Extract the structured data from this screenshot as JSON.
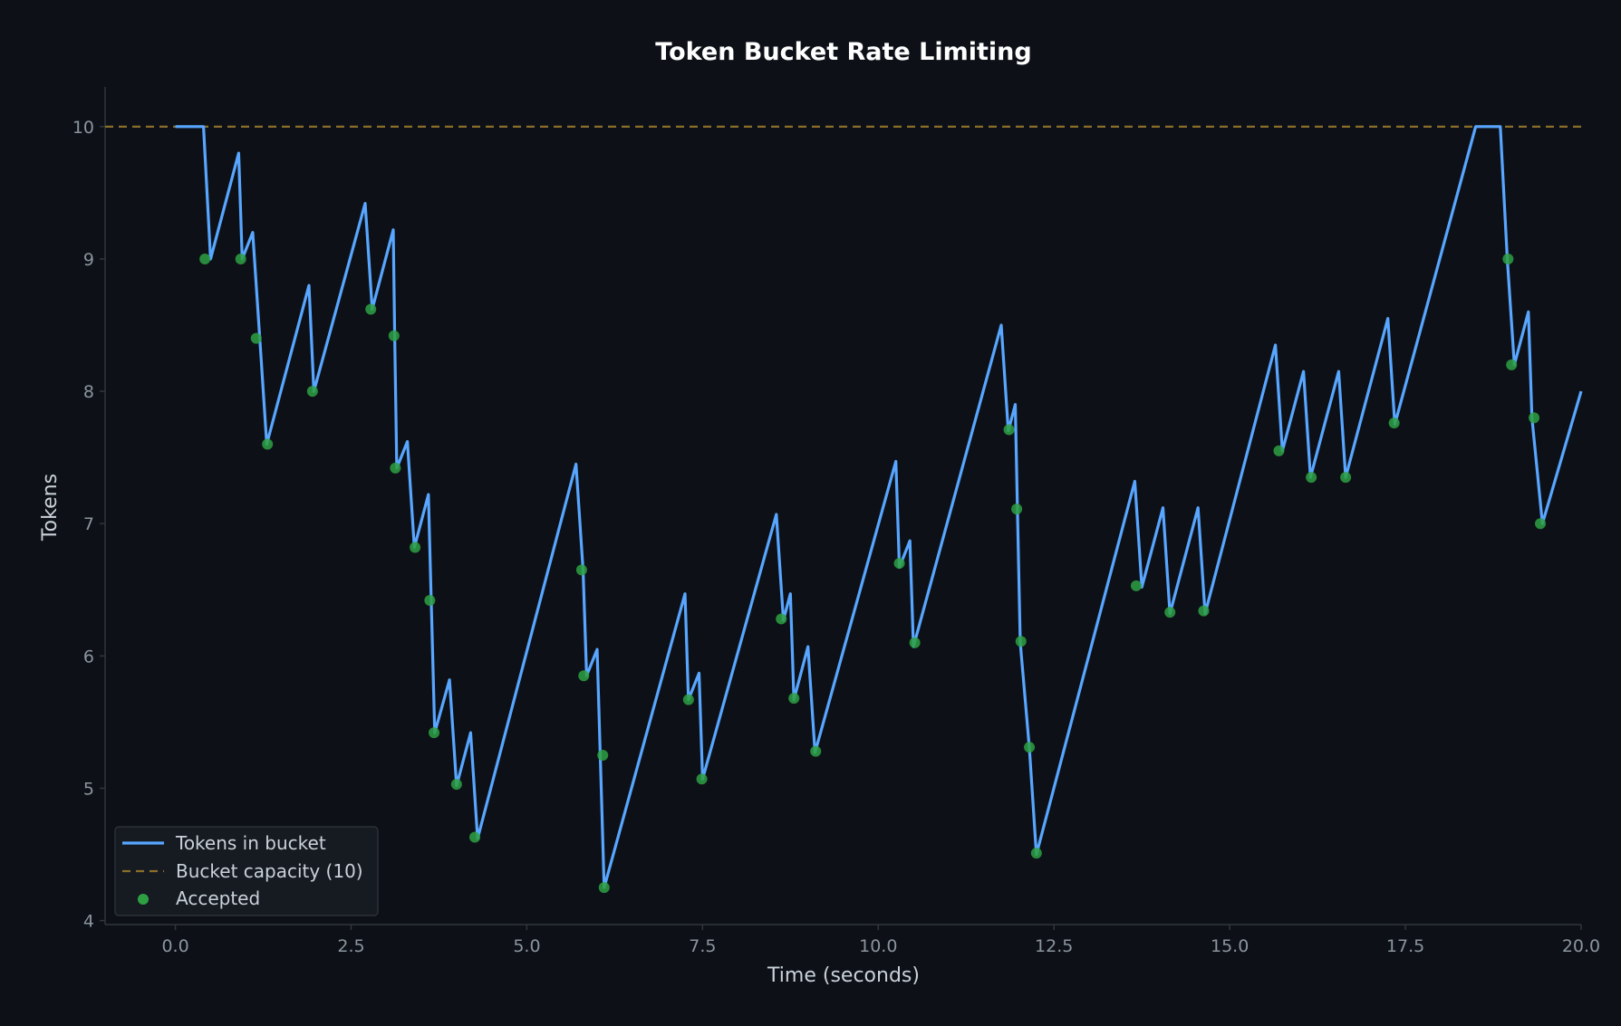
{
  "chart_data": {
    "type": "line",
    "title": "Token Bucket Rate Limiting",
    "xlabel": "Time (seconds)",
    "ylabel": "Tokens",
    "xlim": [
      -1.0,
      20.0
    ],
    "ylim": [
      3.97,
      10.3
    ],
    "x_ticks": [
      "0.0",
      "2.5",
      "5.0",
      "7.5",
      "10.0",
      "12.5",
      "15.0",
      "17.5",
      "20.0"
    ],
    "y_ticks": [
      "4",
      "5",
      "6",
      "7",
      "8",
      "9",
      "10"
    ],
    "grid": false,
    "legend_position": "lower-left",
    "capacity": 10,
    "colors": {
      "background": "#0d1117",
      "line": "#58a6ff",
      "capacity": "#8b6d2a",
      "accepted": "#2ea043",
      "axis": "#30363d"
    },
    "series": [
      {
        "name": "Tokens in bucket",
        "style": "solid",
        "points": [
          [
            0.0,
            10.0
          ],
          [
            0.4,
            10.0
          ],
          [
            0.5,
            9.0
          ],
          [
            0.9,
            9.8
          ],
          [
            0.95,
            9.0
          ],
          [
            1.1,
            9.2
          ],
          [
            1.2,
            8.4
          ],
          [
            1.3,
            7.6
          ],
          [
            1.9,
            8.8
          ],
          [
            1.97,
            8.0
          ],
          [
            2.7,
            9.42
          ],
          [
            2.8,
            8.62
          ],
          [
            3.1,
            9.22
          ],
          [
            3.12,
            8.42
          ],
          [
            3.15,
            7.42
          ],
          [
            3.3,
            7.62
          ],
          [
            3.4,
            6.82
          ],
          [
            3.6,
            7.22
          ],
          [
            3.64,
            6.42
          ],
          [
            3.69,
            5.42
          ],
          [
            3.9,
            5.82
          ],
          [
            4.0,
            5.02
          ],
          [
            4.2,
            5.42
          ],
          [
            4.3,
            4.62
          ],
          [
            5.7,
            7.45
          ],
          [
            5.8,
            6.65
          ],
          [
            5.85,
            5.85
          ],
          [
            6.0,
            6.05
          ],
          [
            6.1,
            4.25
          ],
          [
            7.25,
            6.47
          ],
          [
            7.3,
            5.67
          ],
          [
            7.45,
            5.87
          ],
          [
            7.5,
            5.07
          ],
          [
            8.55,
            7.07
          ],
          [
            8.65,
            6.27
          ],
          [
            8.75,
            6.47
          ],
          [
            8.8,
            5.67
          ],
          [
            9.0,
            6.07
          ],
          [
            9.1,
            5.27
          ],
          [
            10.25,
            7.47
          ],
          [
            10.3,
            6.67
          ],
          [
            10.45,
            6.87
          ],
          [
            10.5,
            6.07
          ],
          [
            11.75,
            8.5
          ],
          [
            11.85,
            7.7
          ],
          [
            11.95,
            7.9
          ],
          [
            11.98,
            7.1
          ],
          [
            12.02,
            6.1
          ],
          [
            12.15,
            5.3
          ],
          [
            12.25,
            4.5
          ],
          [
            13.65,
            7.32
          ],
          [
            13.75,
            6.52
          ],
          [
            14.05,
            7.12
          ],
          [
            14.15,
            6.32
          ],
          [
            14.55,
            7.12
          ],
          [
            14.65,
            6.32
          ],
          [
            15.65,
            8.35
          ],
          [
            15.75,
            7.55
          ],
          [
            16.05,
            8.15
          ],
          [
            16.15,
            7.35
          ],
          [
            16.55,
            8.15
          ],
          [
            16.65,
            7.35
          ],
          [
            17.25,
            8.55
          ],
          [
            17.35,
            7.75
          ],
          [
            18.5,
            10.0
          ],
          [
            18.85,
            10.0
          ],
          [
            18.95,
            9.0
          ],
          [
            19.05,
            8.2
          ],
          [
            19.25,
            8.6
          ],
          [
            19.3,
            7.8
          ],
          [
            19.45,
            7.0
          ],
          [
            20.0,
            8.0
          ]
        ]
      },
      {
        "name": "Bucket capacity (10)",
        "style": "dashed",
        "y": 10
      },
      {
        "name": "Accepted",
        "style": "scatter",
        "points": [
          [
            0.42,
            9.0
          ],
          [
            0.93,
            9.0
          ],
          [
            1.15,
            8.4
          ],
          [
            1.31,
            7.6
          ],
          [
            1.95,
            8.0
          ],
          [
            2.78,
            8.62
          ],
          [
            3.11,
            8.42
          ],
          [
            3.13,
            7.42
          ],
          [
            3.41,
            6.82
          ],
          [
            3.62,
            6.42
          ],
          [
            3.68,
            5.42
          ],
          [
            4.0,
            5.03
          ],
          [
            4.26,
            4.63
          ],
          [
            5.78,
            6.65
          ],
          [
            5.81,
            5.85
          ],
          [
            6.08,
            5.25
          ],
          [
            6.1,
            4.25
          ],
          [
            7.3,
            5.67
          ],
          [
            7.49,
            5.07
          ],
          [
            8.62,
            6.28
          ],
          [
            8.8,
            5.68
          ],
          [
            9.11,
            5.28
          ],
          [
            10.3,
            6.7
          ],
          [
            10.52,
            6.1
          ],
          [
            11.86,
            7.71
          ],
          [
            11.97,
            7.11
          ],
          [
            12.03,
            6.11
          ],
          [
            12.15,
            5.31
          ],
          [
            12.25,
            4.51
          ],
          [
            13.67,
            6.53
          ],
          [
            14.15,
            6.33
          ],
          [
            14.63,
            6.34
          ],
          [
            15.7,
            7.55
          ],
          [
            16.16,
            7.35
          ],
          [
            16.65,
            7.35
          ],
          [
            17.34,
            7.76
          ],
          [
            18.96,
            9.0
          ],
          [
            19.01,
            8.2
          ],
          [
            19.33,
            7.8
          ],
          [
            19.42,
            7.0
          ]
        ]
      }
    ]
  }
}
